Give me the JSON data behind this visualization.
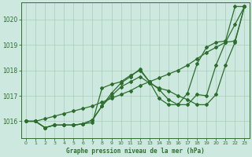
{
  "xlabel": "Graphe pression niveau de la mer (hPa)",
  "bg_color": "#cce8df",
  "line_color": "#2d6e2d",
  "grid_color": "#aaccbb",
  "x_ticks": [
    0,
    1,
    2,
    3,
    4,
    5,
    6,
    7,
    8,
    9,
    10,
    11,
    12,
    13,
    14,
    15,
    16,
    17,
    18,
    19,
    20,
    21,
    22,
    23
  ],
  "ylim": [
    1015.35,
    1020.65
  ],
  "yticks": [
    1016,
    1017,
    1018,
    1019,
    1020
  ],
  "line1_x": [
    0,
    1,
    2,
    3,
    4,
    5,
    6,
    7,
    8,
    9,
    10,
    11,
    12,
    13,
    14,
    15,
    16,
    17,
    18,
    19,
    20,
    21,
    22,
    23
  ],
  "line1_y": [
    1016.0,
    1016.0,
    1016.1,
    1016.2,
    1016.3,
    1016.4,
    1016.5,
    1016.6,
    1016.75,
    1016.9,
    1017.05,
    1017.2,
    1017.4,
    1017.55,
    1017.7,
    1017.85,
    1018.0,
    1018.2,
    1018.45,
    1018.7,
    1018.9,
    1019.1,
    1019.8,
    1020.5
  ],
  "line2_x": [
    0,
    1,
    2,
    3,
    4,
    5,
    6,
    7,
    8,
    9,
    10,
    11,
    12,
    13,
    14,
    15,
    16,
    17,
    18,
    19,
    20,
    21,
    22,
    23
  ],
  "line2_y": [
    1016.0,
    1016.0,
    1015.75,
    1015.85,
    1015.85,
    1015.85,
    1015.9,
    1015.95,
    1017.3,
    1017.45,
    1017.55,
    1017.8,
    1018.0,
    1017.55,
    1017.25,
    1016.85,
    1016.65,
    1016.65,
    1017.05,
    1017.0,
    1018.2,
    1019.1,
    1019.15,
    1020.5
  ],
  "line3_x": [
    0,
    1,
    2,
    3,
    4,
    5,
    6,
    7,
    8,
    9,
    10,
    11,
    12,
    13,
    14,
    15,
    16,
    17,
    18,
    19,
    20,
    21,
    22,
    23
  ],
  "line3_y": [
    1016.0,
    1016.0,
    1015.75,
    1015.85,
    1015.85,
    1015.85,
    1015.9,
    1016.05,
    1016.6,
    1017.0,
    1017.35,
    1017.55,
    1017.75,
    1017.5,
    1017.3,
    1017.2,
    1017.0,
    1016.85,
    1016.65,
    1016.65,
    1017.05,
    1018.2,
    1019.1,
    1020.5
  ],
  "line4_x": [
    0,
    1,
    2,
    3,
    4,
    5,
    6,
    7,
    8,
    9,
    10,
    11,
    12,
    13,
    14,
    15,
    16,
    17,
    18,
    19,
    20,
    21,
    22,
    23
  ],
  "line4_y": [
    1016.0,
    1016.0,
    1015.75,
    1015.85,
    1015.85,
    1015.85,
    1015.9,
    1016.05,
    1016.6,
    1017.1,
    1017.5,
    1017.75,
    1018.05,
    1017.55,
    1016.9,
    1016.65,
    1016.65,
    1017.1,
    1018.25,
    1018.9,
    1019.1,
    1019.15,
    1020.5,
    1020.5
  ]
}
